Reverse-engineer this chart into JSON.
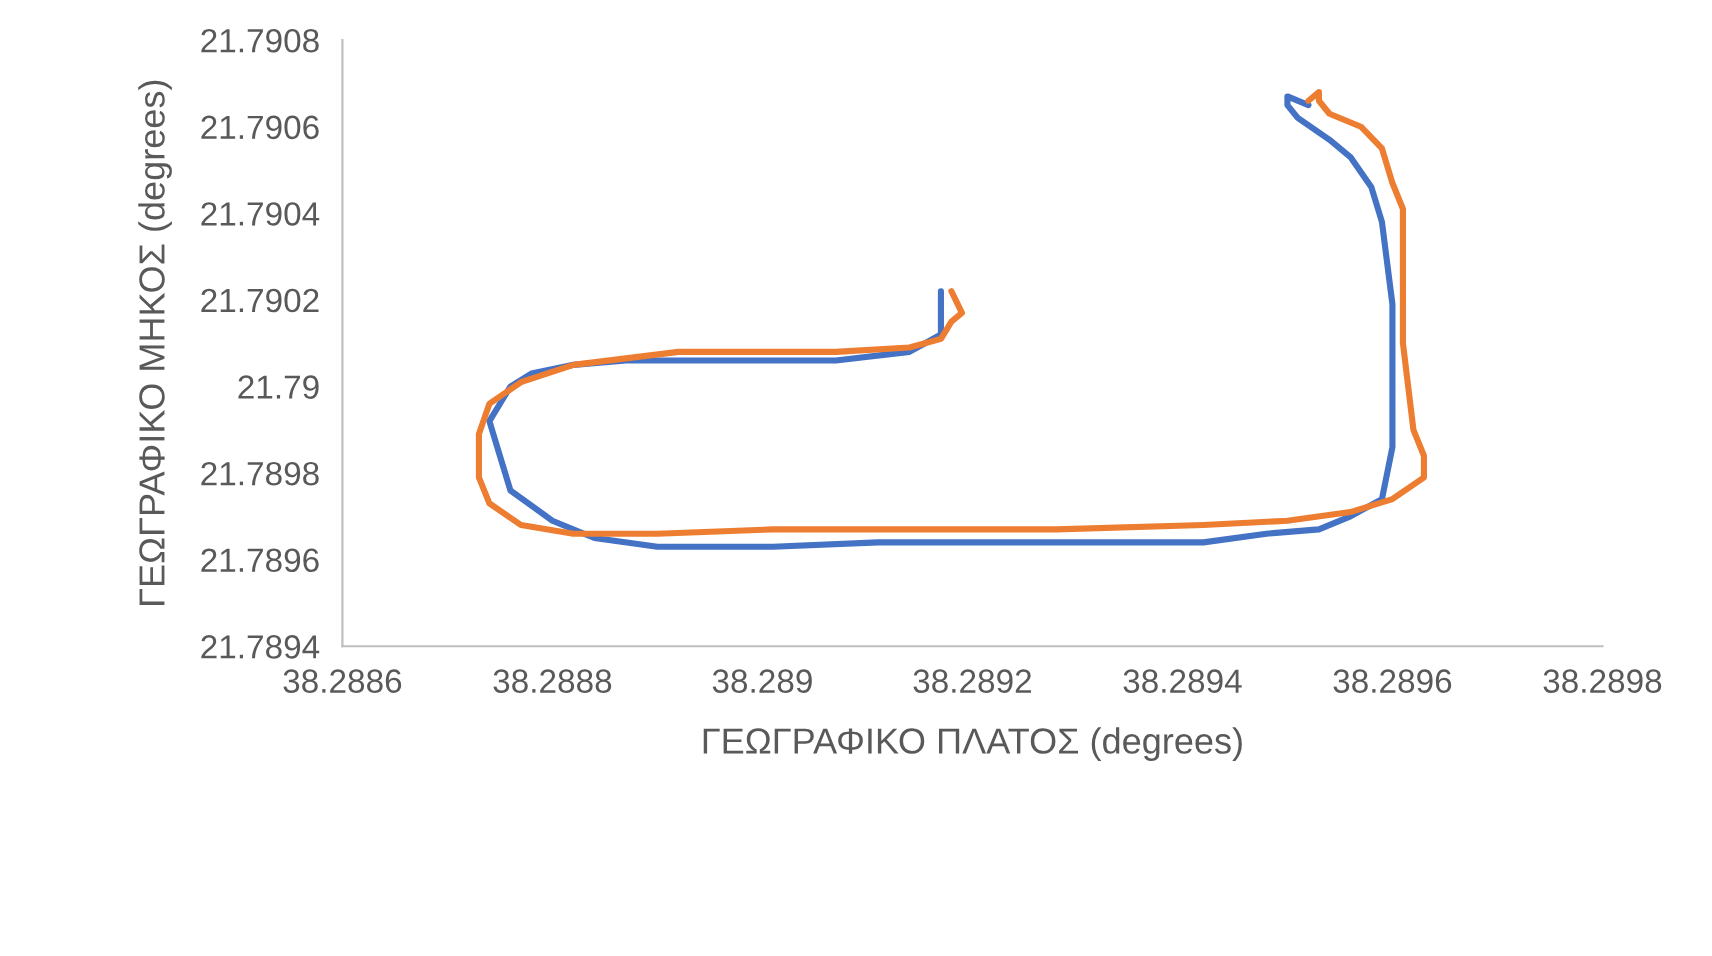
{
  "chart_data": {
    "type": "line",
    "xlabel": "ΓΕΩΓΡΑΦΙΚΟ ΠΛΑΤΟΣ (degrees)",
    "ylabel": "ΓΕΩΓΡΑΦΙΚΟ ΜΗΚΟΣ (degrees)",
    "xlim": [
      38.2886,
      38.2898
    ],
    "xticks": [
      38.2886,
      38.2888,
      38.289,
      38.2892,
      38.2894,
      38.2896,
      38.2898
    ],
    "ylim": [
      21.7894,
      21.7908
    ],
    "yticks": [
      21.7894,
      21.7896,
      21.7898,
      21.79,
      21.7902,
      21.7904,
      21.7906,
      21.7908
    ],
    "marker": "none",
    "line_style": "solid",
    "series": [
      {
        "color": "#4472c4",
        "x": [
          38.28917,
          38.28917,
          38.28914,
          38.28907,
          38.28901,
          38.28894,
          38.28887,
          38.28882,
          38.28878,
          38.28876,
          38.28874,
          38.28875,
          38.28876,
          38.2888,
          38.28884,
          38.2889,
          38.28901,
          38.28911,
          38.28921,
          38.28931,
          38.28942,
          38.28948,
          38.28953,
          38.28956,
          38.28959,
          38.2896,
          38.2896,
          38.2896,
          38.28959,
          38.28958,
          38.28956,
          38.28954,
          38.28951,
          38.2895,
          38.2895,
          38.28952
        ],
        "values": [
          21.79022,
          21.79012,
          21.79008,
          21.79006,
          21.79006,
          21.79006,
          21.79006,
          21.79005,
          21.79003,
          21.79,
          21.78992,
          21.78984,
          21.78976,
          21.78969,
          21.78965,
          21.78963,
          21.78963,
          21.78964,
          21.78964,
          21.78964,
          21.78964,
          21.78966,
          21.78967,
          21.7897,
          21.78974,
          21.78986,
          21.79002,
          21.79019,
          21.79038,
          21.79046,
          21.79053,
          21.79057,
          21.79062,
          21.79065,
          21.79067,
          21.79065
        ]
      },
      {
        "color": "#ed7d31",
        "x": [
          38.28918,
          38.28919,
          38.28918,
          38.28917,
          38.28914,
          38.28907,
          38.28901,
          38.28892,
          38.28882,
          38.28877,
          38.28874,
          38.28873,
          38.28873,
          38.28874,
          38.28877,
          38.28882,
          38.2889,
          38.28901,
          38.28913,
          38.28928,
          38.28942,
          38.2895,
          38.28956,
          38.2896,
          38.28963,
          38.28963,
          38.28962,
          38.28961,
          38.28961,
          38.28961,
          38.2896,
          38.28959,
          38.28957,
          38.28954,
          38.28953,
          38.28953,
          38.28952
        ],
        "values": [
          21.79022,
          21.79017,
          21.79015,
          21.79011,
          21.79009,
          21.79008,
          21.79008,
          21.79008,
          21.79005,
          21.79001,
          21.78996,
          21.78989,
          21.78979,
          21.78973,
          21.78968,
          21.78966,
          21.78966,
          21.78967,
          21.78967,
          21.78967,
          21.78968,
          21.78969,
          21.78971,
          21.78974,
          21.78979,
          21.78984,
          21.7899,
          21.7901,
          21.79027,
          21.79041,
          21.79047,
          21.79055,
          21.7906,
          21.79063,
          21.79066,
          21.79068,
          21.79066
        ]
      }
    ]
  }
}
